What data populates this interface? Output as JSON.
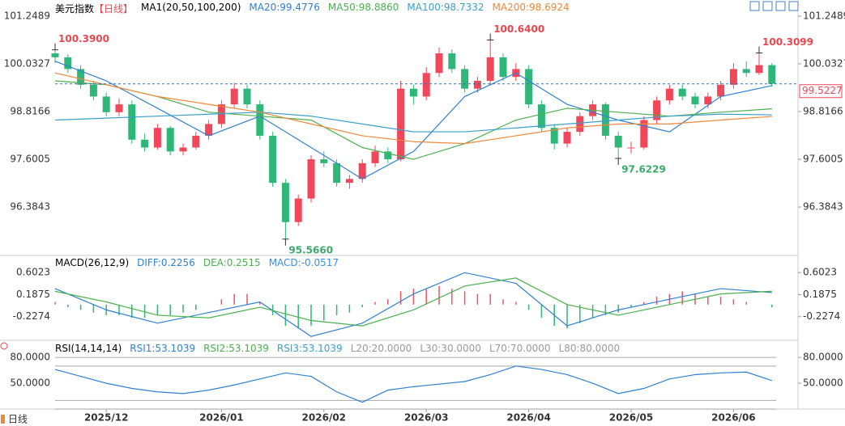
{
  "header": {
    "symbol": "美元指数",
    "period": "【日线】",
    "ma_label": "MA1(20,50,100,200)",
    "footer": "日线"
  },
  "chart_data": [
    {
      "type": "candlestick",
      "ylim": [
        95.17,
        101.66
      ],
      "yticks": [
        101.2489,
        100.0327,
        98.8166,
        97.6005,
        96.3843
      ],
      "up_color": "#f0475a",
      "down_color": "#2fb77a",
      "candles": {
        "open": [
          100.3,
          100.2,
          99.9,
          99.5,
          99.2,
          98.8,
          99.0,
          98.1,
          97.9,
          98.4,
          97.8,
          97.9,
          98.2,
          98.5,
          99.0,
          99.4,
          99.0,
          98.2,
          97.0,
          96.0,
          96.6,
          97.6,
          97.5,
          97.0,
          97.1,
          97.5,
          97.8,
          97.6,
          99.4,
          99.2,
          99.8,
          100.3,
          99.9,
          99.4,
          99.6,
          100.2,
          99.7,
          99.9,
          99.0,
          98.4,
          98.0,
          98.3,
          98.7,
          99.0,
          98.2,
          97.9,
          97.9,
          98.6,
          99.1,
          99.4,
          99.2,
          99.0,
          99.2,
          99.5,
          99.9,
          99.8,
          100.0
        ],
        "high": [
          100.39,
          100.28,
          100.0,
          99.6,
          99.3,
          99.15,
          99.1,
          98.25,
          98.5,
          98.45,
          98.0,
          98.3,
          98.6,
          99.1,
          99.55,
          99.5,
          99.1,
          98.3,
          97.1,
          96.7,
          97.7,
          97.8,
          97.6,
          97.2,
          97.6,
          97.95,
          97.9,
          99.6,
          99.5,
          99.95,
          100.45,
          100.4,
          100.0,
          99.7,
          100.64,
          100.3,
          100.05,
          100.0,
          99.1,
          98.5,
          98.4,
          98.8,
          99.1,
          99.05,
          98.3,
          98.05,
          98.7,
          99.2,
          99.5,
          99.5,
          99.3,
          99.3,
          99.6,
          100.05,
          100.1,
          100.3099,
          100.05
        ],
        "low": [
          100.05,
          99.8,
          99.4,
          99.1,
          98.7,
          98.7,
          98.0,
          97.8,
          97.85,
          97.7,
          97.7,
          97.85,
          98.1,
          98.4,
          98.9,
          98.9,
          98.1,
          96.9,
          95.566,
          95.9,
          96.5,
          97.4,
          96.9,
          96.85,
          97.0,
          97.4,
          97.5,
          97.55,
          99.0,
          99.1,
          99.7,
          99.8,
          99.3,
          99.3,
          99.5,
          99.6,
          99.6,
          98.9,
          98.3,
          97.85,
          97.9,
          98.2,
          98.6,
          98.1,
          97.6229,
          97.75,
          97.85,
          98.5,
          99.0,
          99.1,
          98.9,
          98.9,
          99.1,
          99.4,
          99.7,
          99.75,
          99.45
        ],
        "close": [
          100.2,
          99.9,
          99.5,
          99.2,
          98.8,
          99.0,
          98.1,
          97.9,
          98.4,
          97.8,
          97.9,
          98.2,
          98.5,
          99.0,
          99.4,
          99.0,
          98.2,
          97.0,
          96.0,
          96.6,
          97.6,
          97.5,
          97.0,
          97.1,
          97.5,
          97.8,
          97.6,
          99.4,
          99.2,
          99.8,
          100.3,
          99.9,
          99.4,
          99.6,
          100.2,
          99.7,
          99.9,
          99.0,
          98.4,
          98.0,
          98.3,
          98.7,
          99.0,
          98.2,
          97.9,
          97.9,
          98.6,
          99.1,
          99.4,
          99.2,
          99.0,
          99.2,
          99.5,
          99.9,
          99.8,
          100.0,
          99.5227
        ]
      },
      "ma_x": [
        0,
        4,
        8,
        12,
        16,
        20,
        24,
        28,
        32,
        36,
        40,
        44,
        48,
        52,
        56
      ],
      "series": [
        {
          "name": "MA20",
          "label": "MA20:99.4776",
          "color": "#2f80d1",
          "values": [
            100.1,
            99.6,
            98.9,
            98.2,
            98.7,
            97.9,
            97.1,
            97.8,
            99.2,
            99.8,
            99.0,
            98.6,
            98.3,
            99.2,
            99.4776
          ]
        },
        {
          "name": "MA50",
          "label": "MA50:98.8860",
          "color": "#4caf50",
          "values": [
            99.6,
            99.5,
            99.2,
            98.8,
            98.7,
            98.6,
            97.9,
            97.6,
            98.0,
            98.6,
            98.9,
            98.8,
            98.7,
            98.8,
            98.886
          ]
        },
        {
          "name": "MA100",
          "label": "MA100:98.7332",
          "color": "#3aa0c8",
          "values": [
            98.6,
            98.65,
            98.7,
            98.75,
            98.8,
            98.7,
            98.5,
            98.3,
            98.3,
            98.4,
            98.5,
            98.6,
            98.7,
            98.75,
            98.7332
          ]
        },
        {
          "name": "MA200",
          "label": "MA200:98.6924",
          "color": "#f0883a",
          "values": [
            99.8,
            99.5,
            99.2,
            99.0,
            98.8,
            98.5,
            98.2,
            98.05,
            98.0,
            98.2,
            98.4,
            98.5,
            98.5,
            98.6,
            98.6924
          ]
        }
      ],
      "annotations": [
        {
          "value": 100.39,
          "label": "100.3900",
          "color": "#e8474f"
        },
        {
          "value": 100.64,
          "label": "100.6400",
          "color": "#e8474f"
        },
        {
          "value": 100.3099,
          "label": "100.3099",
          "color": "#e8474f"
        },
        {
          "value": 95.566,
          "label": "95.5660",
          "color": "#3bab6a"
        },
        {
          "value": 97.6229,
          "label": "97.6229",
          "color": "#3bab6a"
        }
      ],
      "last_price": 99.5227,
      "x_ticks": [
        {
          "value": 4,
          "label": "2025/12"
        },
        {
          "value": 13,
          "label": "2026/01"
        },
        {
          "value": 21,
          "label": "2026/02"
        },
        {
          "value": 29,
          "label": "2026/03"
        },
        {
          "value": 37,
          "label": "2026/04"
        },
        {
          "value": 45,
          "label": "2026/05"
        },
        {
          "value": 53,
          "label": "2026/06"
        }
      ]
    },
    {
      "type": "macd",
      "title": "MACD(26,12,9)",
      "ylim": [
        -0.657,
        0.894
      ],
      "yticks": [
        0.6023,
        0.1875,
        -0.2274
      ],
      "histogram": {
        "label": "MACD:-0.0517",
        "color": "#3a8ee6",
        "values": [
          0.05,
          -0.05,
          -0.1,
          -0.15,
          -0.2,
          -0.2,
          -0.25,
          -0.25,
          -0.2,
          -0.2,
          -0.15,
          -0.1,
          0.0,
          0.1,
          0.2,
          0.2,
          0.05,
          -0.2,
          -0.4,
          -0.45,
          -0.4,
          -0.3,
          -0.2,
          -0.15,
          -0.05,
          0.05,
          0.1,
          0.25,
          0.3,
          0.3,
          0.35,
          0.3,
          0.25,
          0.2,
          0.2,
          0.1,
          0.05,
          -0.1,
          -0.25,
          -0.4,
          -0.45,
          -0.35,
          -0.25,
          -0.2,
          -0.15,
          -0.05,
          0.05,
          0.15,
          0.2,
          0.25,
          0.2,
          0.15,
          0.15,
          0.1,
          0.05,
          0.0,
          -0.0517
        ]
      },
      "x": [
        0,
        4,
        8,
        12,
        16,
        20,
        24,
        28,
        32,
        36,
        40,
        44,
        48,
        52,
        56
      ],
      "series": [
        {
          "name": "DIFF",
          "label": "DIFF:0.2256",
          "color": "#2f80d1",
          "values": [
            0.3,
            -0.1,
            -0.35,
            -0.15,
            0.05,
            -0.6,
            -0.35,
            0.2,
            0.6,
            0.4,
            -0.4,
            -0.1,
            0.1,
            0.3,
            0.2256
          ]
        },
        {
          "name": "DEA",
          "label": "DEA:0.2515",
          "color": "#4caf50",
          "values": [
            0.25,
            0.05,
            -0.2,
            -0.25,
            -0.05,
            -0.3,
            -0.4,
            -0.1,
            0.35,
            0.5,
            0.0,
            -0.2,
            0.0,
            0.2,
            0.2515
          ]
        }
      ]
    },
    {
      "type": "rsi",
      "title": "RSI(14,14,14)",
      "ylim": [
        21,
        98
      ],
      "yticks": [
        {
          "value": 80,
          "label": "80.0000"
        },
        {
          "value": 50,
          "label": "50.0000"
        }
      ],
      "levels": [
        {
          "value": 20,
          "label": "L20:20.0000"
        },
        {
          "value": 30,
          "label": "L30:30.0000"
        },
        {
          "value": 70,
          "label": "L70:70.0000"
        },
        {
          "value": 80,
          "label": "L80:80.0000"
        }
      ],
      "x": [
        0,
        2,
        4,
        6,
        8,
        10,
        12,
        14,
        16,
        18,
        20,
        22,
        24,
        26,
        28,
        30,
        32,
        34,
        36,
        38,
        40,
        42,
        44,
        46,
        48,
        50,
        52,
        54,
        56
      ],
      "series": [
        {
          "name": "RSI1",
          "label": "RSI1:53.1039",
          "color": "#2f80d1",
          "values": [
            66,
            58,
            50,
            44,
            40,
            38,
            42,
            48,
            55,
            62,
            58,
            40,
            28,
            42,
            46,
            49,
            52,
            60,
            70,
            66,
            60,
            50,
            38,
            44,
            55,
            60,
            62,
            63,
            53.1039
          ]
        },
        {
          "name": "RSI2",
          "label": "RSI2:53.1039",
          "color": "#4caf50"
        },
        {
          "name": "RSI3",
          "label": "RSI3:53.1039",
          "color": "#3aa0c8"
        }
      ]
    }
  ]
}
